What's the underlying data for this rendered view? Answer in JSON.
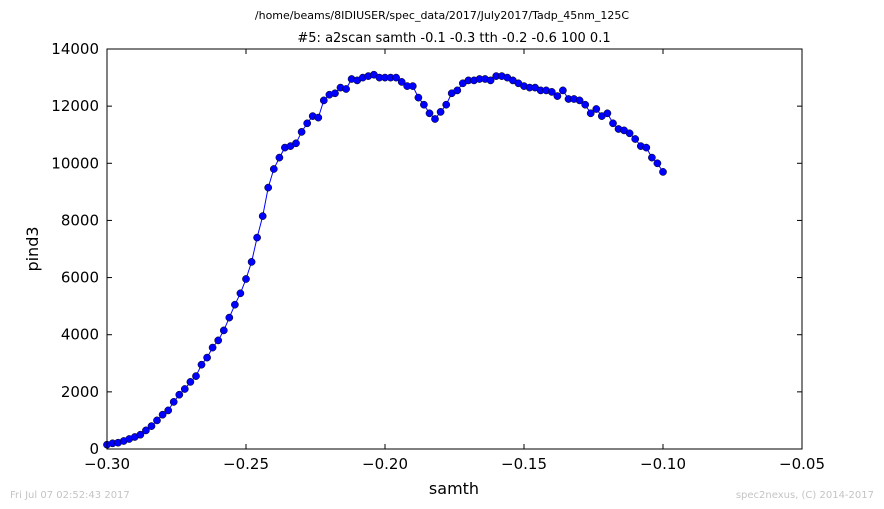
{
  "header": {
    "path": "/home/beams/8IDIUSER/spec_data/2017/July2017/Tadp_45nm_125C",
    "scan": "#5: a2scan  samth -0.1 -0.3  tth -0.2 -0.6  100 0.1"
  },
  "footer": {
    "timestamp": "Fri Jul 07 02:52:43 2017",
    "credit": "spec2nexus, (C) 2014-2017"
  },
  "chart_data": {
    "type": "line",
    "title": "#5: a2scan  samth -0.1 -0.3  tth -0.2 -0.6  100 0.1",
    "xlabel": "samth",
    "ylabel": "pind3",
    "xlim": [
      -0.3,
      -0.05
    ],
    "ylim": [
      0,
      14000
    ],
    "xticks": [
      -0.3,
      -0.25,
      -0.2,
      -0.15,
      -0.1,
      -0.05
    ],
    "xtick_labels": [
      "−0.30",
      "−0.25",
      "−0.20",
      "−0.15",
      "−0.10",
      "−0.05"
    ],
    "yticks": [
      0,
      2000,
      4000,
      6000,
      8000,
      10000,
      12000,
      14000
    ],
    "ytick_labels": [
      "0",
      "2000",
      "4000",
      "6000",
      "8000",
      "10000",
      "12000",
      "14000"
    ],
    "grid": false,
    "series_color": "#0000ff",
    "marker": "circle",
    "x": [
      -0.3,
      -0.298,
      -0.296,
      -0.294,
      -0.292,
      -0.29,
      -0.288,
      -0.286,
      -0.284,
      -0.282,
      -0.28,
      -0.278,
      -0.276,
      -0.274,
      -0.272,
      -0.27,
      -0.268,
      -0.266,
      -0.264,
      -0.262,
      -0.26,
      -0.258,
      -0.256,
      -0.254,
      -0.252,
      -0.25,
      -0.248,
      -0.246,
      -0.244,
      -0.242,
      -0.24,
      -0.238,
      -0.236,
      -0.234,
      -0.232,
      -0.23,
      -0.228,
      -0.226,
      -0.224,
      -0.222,
      -0.22,
      -0.218,
      -0.216,
      -0.214,
      -0.212,
      -0.21,
      -0.208,
      -0.206,
      -0.204,
      -0.202,
      -0.2,
      -0.198,
      -0.196,
      -0.194,
      -0.192,
      -0.19,
      -0.188,
      -0.186,
      -0.184,
      -0.182,
      -0.18,
      -0.178,
      -0.176,
      -0.174,
      -0.172,
      -0.17,
      -0.168,
      -0.166,
      -0.164,
      -0.162,
      -0.16,
      -0.158,
      -0.156,
      -0.154,
      -0.152,
      -0.15,
      -0.148,
      -0.146,
      -0.144,
      -0.142,
      -0.14,
      -0.138,
      -0.136,
      -0.134,
      -0.132,
      -0.13,
      -0.128,
      -0.126,
      -0.124,
      -0.122,
      -0.12,
      -0.118,
      -0.116,
      -0.114,
      -0.112,
      -0.11,
      -0.108,
      -0.106,
      -0.104,
      -0.102,
      -0.1
    ],
    "y": [
      150,
      200,
      220,
      280,
      350,
      420,
      500,
      650,
      800,
      1000,
      1200,
      1350,
      1650,
      1900,
      2100,
      2350,
      2550,
      2950,
      3200,
      3550,
      3800,
      4150,
      4600,
      5050,
      5450,
      5950,
      6550,
      7400,
      8150,
      9150,
      9800,
      10200,
      10550,
      10600,
      10700,
      11100,
      11400,
      11650,
      11600,
      12200,
      12400,
      12450,
      12650,
      12600,
      12950,
      12900,
      13000,
      13050,
      13100,
      13000,
      13000,
      13000,
      13000,
      12850,
      12700,
      12700,
      12300,
      12050,
      11750,
      11550,
      11800,
      12050,
      12450,
      12550,
      12800,
      12900,
      12900,
      12950,
      12950,
      12900,
      13050,
      13050,
      13000,
      12900,
      12800,
      12700,
      12650,
      12650,
      12550,
      12550,
      12500,
      12350,
      12550,
      12250,
      12250,
      12200,
      12050,
      11750,
      11900,
      11650,
      11750,
      11400,
      11200,
      11150,
      11050,
      10850,
      10600,
      10550,
      10200,
      10000,
      9700
    ]
  }
}
